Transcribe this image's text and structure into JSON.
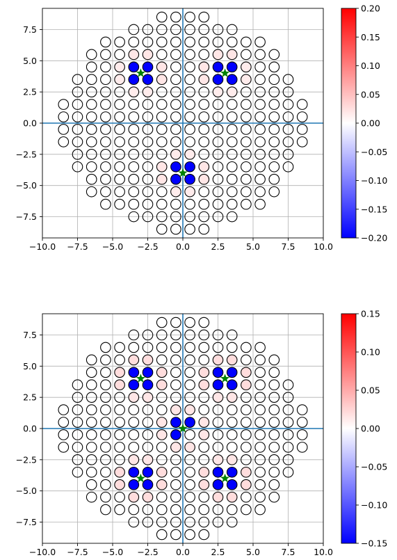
{
  "colors": {
    "axis_line": "#1f77b4",
    "grid": "#b0b0b0",
    "marker_star": "#008000",
    "circle_edge": "#000000",
    "cmap_low": "#0000ff",
    "cmap_mid": "#ffffff",
    "cmap_high": "#ff0000"
  },
  "chart_data": [
    {
      "type": "scatter",
      "title": "",
      "xlabel": "",
      "ylabel": "",
      "xlim": [
        -10,
        10
      ],
      "ylim": [
        -9.2,
        9.2
      ],
      "x_ticks": [
        -10.0,
        -7.5,
        -5.0,
        -2.5,
        0.0,
        2.5,
        5.0,
        7.5,
        10.0
      ],
      "x_tick_labels": [
        "−10.0",
        "−7.5",
        "−5.0",
        "−2.5",
        "0.0",
        "2.5",
        "5.0",
        "7.5",
        "10.0"
      ],
      "y_ticks": [
        -7.5,
        -5.0,
        -2.5,
        0.0,
        2.5,
        5.0,
        7.5
      ],
      "y_tick_labels": [
        "−7.5",
        "−5.0",
        "−2.5",
        "0.0",
        "2.5",
        "5.0",
        "7.5"
      ],
      "grid": true,
      "colorbar": {
        "range": [
          -0.2,
          0.2
        ],
        "ticks": [
          -0.2,
          -0.15,
          -0.1,
          -0.05,
          0.0,
          0.05,
          0.1,
          0.15,
          0.2
        ],
        "tick_labels": [
          "−0.20",
          "−0.15",
          "−0.10",
          "−0.05",
          "0.00",
          "0.05",
          "0.10",
          "0.15",
          "0.20"
        ]
      },
      "lattice": {
        "spacing": 1.0,
        "rows": [
          {
            "y": 8.5,
            "x_min": -1.5,
            "x_max": 1.5
          },
          {
            "y": 7.5,
            "x_min": -3.5,
            "x_max": 3.5
          },
          {
            "y": 6.5,
            "x_min": -5.5,
            "x_max": 5.5
          },
          {
            "y": 5.5,
            "x_min": -6.5,
            "x_max": 6.5
          },
          {
            "y": 4.5,
            "x_min": -6.5,
            "x_max": 6.5
          },
          {
            "y": 3.5,
            "x_min": -7.5,
            "x_max": 7.5
          },
          {
            "y": 2.5,
            "x_min": -7.5,
            "x_max": 7.5
          },
          {
            "y": 1.5,
            "x_min": -8.5,
            "x_max": 8.5
          },
          {
            "y": 0.5,
            "x_min": -8.5,
            "x_max": 8.5
          },
          {
            "y": -0.5,
            "x_min": -8.5,
            "x_max": 8.5
          },
          {
            "y": -1.5,
            "x_min": -8.5,
            "x_max": 8.5
          },
          {
            "y": -2.5,
            "x_min": -7.5,
            "x_max": 7.5
          },
          {
            "y": -3.5,
            "x_min": -7.5,
            "x_max": 7.5
          },
          {
            "y": -4.5,
            "x_min": -6.5,
            "x_max": 6.5
          },
          {
            "y": -5.5,
            "x_min": -6.5,
            "x_max": 6.5
          },
          {
            "y": -6.5,
            "x_min": -5.5,
            "x_max": 5.5
          },
          {
            "y": -7.5,
            "x_min": -3.5,
            "x_max": 3.5
          },
          {
            "y": -8.5,
            "x_min": -1.5,
            "x_max": 1.5
          }
        ]
      },
      "highlighted_sites": [
        {
          "x": -3.5,
          "y": 4.5,
          "value": -0.2
        },
        {
          "x": -2.5,
          "y": 4.5,
          "value": -0.2
        },
        {
          "x": -3.5,
          "y": 3.5,
          "value": -0.2
        },
        {
          "x": -2.5,
          "y": 3.5,
          "value": -0.2
        },
        {
          "x": 2.5,
          "y": 4.5,
          "value": -0.2
        },
        {
          "x": 3.5,
          "y": 4.5,
          "value": -0.2
        },
        {
          "x": 2.5,
          "y": 3.5,
          "value": -0.2
        },
        {
          "x": 3.5,
          "y": 3.5,
          "value": -0.2
        },
        {
          "x": -0.5,
          "y": -3.5,
          "value": -0.2
        },
        {
          "x": 0.5,
          "y": -3.5,
          "value": -0.2
        },
        {
          "x": -0.5,
          "y": -4.5,
          "value": -0.2
        },
        {
          "x": 0.5,
          "y": -4.5,
          "value": -0.2
        },
        {
          "x": -3.5,
          "y": 5.5,
          "value": 0.02
        },
        {
          "x": -2.5,
          "y": 5.5,
          "value": 0.02
        },
        {
          "x": 2.5,
          "y": 5.5,
          "value": 0.02
        },
        {
          "x": 3.5,
          "y": 5.5,
          "value": 0.02
        },
        {
          "x": -1.5,
          "y": 4.5,
          "value": 0.02
        },
        {
          "x": 1.5,
          "y": 4.5,
          "value": 0.02
        },
        {
          "x": -1.5,
          "y": 3.5,
          "value": 0.02
        },
        {
          "x": 1.5,
          "y": 3.5,
          "value": 0.02
        },
        {
          "x": -3.5,
          "y": 2.5,
          "value": 0.015
        },
        {
          "x": -2.5,
          "y": 2.5,
          "value": 0.015
        },
        {
          "x": 2.5,
          "y": 2.5,
          "value": 0.015
        },
        {
          "x": 3.5,
          "y": 2.5,
          "value": 0.015
        },
        {
          "x": -4.5,
          "y": 4.5,
          "value": 0.015
        },
        {
          "x": -4.5,
          "y": 3.5,
          "value": 0.015
        },
        {
          "x": 4.5,
          "y": 4.5,
          "value": 0.015
        },
        {
          "x": 4.5,
          "y": 3.5,
          "value": 0.015
        },
        {
          "x": -1.5,
          "y": -3.5,
          "value": 0.02
        },
        {
          "x": 1.5,
          "y": -3.5,
          "value": 0.02
        },
        {
          "x": -1.5,
          "y": -4.5,
          "value": 0.02
        },
        {
          "x": 1.5,
          "y": -4.5,
          "value": 0.02
        },
        {
          "x": -0.5,
          "y": -2.5,
          "value": 0.015
        },
        {
          "x": 0.5,
          "y": -2.5,
          "value": 0.015
        },
        {
          "x": -0.5,
          "y": -5.5,
          "value": 0.015
        },
        {
          "x": 0.5,
          "y": -5.5,
          "value": 0.015
        }
      ],
      "stars": [
        {
          "x": -3.0,
          "y": 4.0
        },
        {
          "x": 3.0,
          "y": 4.0
        },
        {
          "x": 0.0,
          "y": -4.0
        }
      ]
    },
    {
      "type": "scatter",
      "title": "",
      "xlabel": "",
      "ylabel": "",
      "xlim": [
        -10,
        10
      ],
      "ylim": [
        -9.2,
        9.2
      ],
      "x_ticks": [
        -10.0,
        -7.5,
        -5.0,
        -2.5,
        0.0,
        2.5,
        5.0,
        7.5,
        10.0
      ],
      "x_tick_labels": [
        "−10.0",
        "−7.5",
        "−5.0",
        "−2.5",
        "0.0",
        "2.5",
        "5.0",
        "7.5",
        "10.0"
      ],
      "y_ticks": [
        -7.5,
        -5.0,
        -2.5,
        0.0,
        2.5,
        5.0,
        7.5
      ],
      "y_tick_labels": [
        "−7.5",
        "−5.0",
        "−2.5",
        "0.0",
        "2.5",
        "5.0",
        "7.5"
      ],
      "grid": true,
      "colorbar": {
        "range": [
          -0.15,
          0.15
        ],
        "ticks": [
          -0.15,
          -0.1,
          -0.05,
          0.0,
          0.05,
          0.1,
          0.15
        ],
        "tick_labels": [
          "−0.15",
          "−0.10",
          "−0.05",
          "0.00",
          "0.05",
          "0.10",
          "0.15"
        ]
      },
      "lattice": {
        "spacing": 1.0,
        "rows": [
          {
            "y": 8.5,
            "x_min": -1.5,
            "x_max": 1.5
          },
          {
            "y": 7.5,
            "x_min": -3.5,
            "x_max": 3.5
          },
          {
            "y": 6.5,
            "x_min": -5.5,
            "x_max": 5.5
          },
          {
            "y": 5.5,
            "x_min": -6.5,
            "x_max": 6.5
          },
          {
            "y": 4.5,
            "x_min": -6.5,
            "x_max": 6.5
          },
          {
            "y": 3.5,
            "x_min": -7.5,
            "x_max": 7.5
          },
          {
            "y": 2.5,
            "x_min": -7.5,
            "x_max": 7.5
          },
          {
            "y": 1.5,
            "x_min": -8.5,
            "x_max": 8.5
          },
          {
            "y": 0.5,
            "x_min": -8.5,
            "x_max": 8.5
          },
          {
            "y": -0.5,
            "x_min": -8.5,
            "x_max": 8.5
          },
          {
            "y": -1.5,
            "x_min": -8.5,
            "x_max": 8.5
          },
          {
            "y": -2.5,
            "x_min": -7.5,
            "x_max": 7.5
          },
          {
            "y": -3.5,
            "x_min": -7.5,
            "x_max": 7.5
          },
          {
            "y": -4.5,
            "x_min": -6.5,
            "x_max": 6.5
          },
          {
            "y": -5.5,
            "x_min": -6.5,
            "x_max": 6.5
          },
          {
            "y": -6.5,
            "x_min": -5.5,
            "x_max": 5.5
          },
          {
            "y": -7.5,
            "x_min": -3.5,
            "x_max": 3.5
          },
          {
            "y": -8.5,
            "x_min": -1.5,
            "x_max": 1.5
          }
        ]
      },
      "highlighted_sites": [
        {
          "x": -3.5,
          "y": 4.5,
          "value": -0.15
        },
        {
          "x": -2.5,
          "y": 4.5,
          "value": -0.15
        },
        {
          "x": -3.5,
          "y": 3.5,
          "value": -0.15
        },
        {
          "x": -2.5,
          "y": 3.5,
          "value": -0.15
        },
        {
          "x": 2.5,
          "y": 4.5,
          "value": -0.15
        },
        {
          "x": 3.5,
          "y": 4.5,
          "value": -0.15
        },
        {
          "x": 2.5,
          "y": 3.5,
          "value": -0.15
        },
        {
          "x": 3.5,
          "y": 3.5,
          "value": -0.15
        },
        {
          "x": -3.5,
          "y": -3.5,
          "value": -0.15
        },
        {
          "x": -2.5,
          "y": -3.5,
          "value": -0.15
        },
        {
          "x": -3.5,
          "y": -4.5,
          "value": -0.15
        },
        {
          "x": -2.5,
          "y": -4.5,
          "value": -0.15
        },
        {
          "x": 2.5,
          "y": -3.5,
          "value": -0.15
        },
        {
          "x": 3.5,
          "y": -3.5,
          "value": -0.15
        },
        {
          "x": 2.5,
          "y": -4.5,
          "value": -0.15
        },
        {
          "x": 3.5,
          "y": -4.5,
          "value": -0.15
        },
        {
          "x": -0.5,
          "y": 0.5,
          "value": -0.15
        },
        {
          "x": 0.5,
          "y": 0.5,
          "value": -0.15
        },
        {
          "x": -0.5,
          "y": -0.5,
          "value": -0.15
        },
        {
          "x": -3.5,
          "y": 5.5,
          "value": 0.02
        },
        {
          "x": -2.5,
          "y": 5.5,
          "value": 0.02
        },
        {
          "x": 2.5,
          "y": 5.5,
          "value": 0.02
        },
        {
          "x": 3.5,
          "y": 5.5,
          "value": 0.02
        },
        {
          "x": -4.5,
          "y": 4.5,
          "value": 0.02
        },
        {
          "x": -1.5,
          "y": 4.5,
          "value": 0.02
        },
        {
          "x": 1.5,
          "y": 4.5,
          "value": 0.02
        },
        {
          "x": 4.5,
          "y": 4.5,
          "value": 0.02
        },
        {
          "x": -4.5,
          "y": 3.5,
          "value": 0.02
        },
        {
          "x": -1.5,
          "y": 3.5,
          "value": 0.02
        },
        {
          "x": 1.5,
          "y": 3.5,
          "value": 0.02
        },
        {
          "x": 4.5,
          "y": 3.5,
          "value": 0.02
        },
        {
          "x": -3.5,
          "y": 2.5,
          "value": 0.015
        },
        {
          "x": -2.5,
          "y": 2.5,
          "value": 0.015
        },
        {
          "x": 2.5,
          "y": 2.5,
          "value": 0.015
        },
        {
          "x": 3.5,
          "y": 2.5,
          "value": 0.015
        },
        {
          "x": -0.5,
          "y": 1.5,
          "value": 0.015
        },
        {
          "x": 0.5,
          "y": 1.5,
          "value": 0.015
        },
        {
          "x": -1.5,
          "y": 0.5,
          "value": 0.015
        },
        {
          "x": 1.5,
          "y": 0.5,
          "value": 0.015
        },
        {
          "x": -1.5,
          "y": -0.5,
          "value": 0.015
        },
        {
          "x": 1.5,
          "y": -0.5,
          "value": 0.015
        },
        {
          "x": -0.5,
          "y": -1.5,
          "value": 0.015
        },
        {
          "x": 0.5,
          "y": -1.5,
          "value": 0.015
        },
        {
          "x": -3.5,
          "y": -2.5,
          "value": 0.015
        },
        {
          "x": -2.5,
          "y": -2.5,
          "value": 0.015
        },
        {
          "x": 2.5,
          "y": -2.5,
          "value": 0.015
        },
        {
          "x": 3.5,
          "y": -2.5,
          "value": 0.015
        },
        {
          "x": -4.5,
          "y": -3.5,
          "value": 0.02
        },
        {
          "x": -1.5,
          "y": -3.5,
          "value": 0.02
        },
        {
          "x": 1.5,
          "y": -3.5,
          "value": 0.02
        },
        {
          "x": 4.5,
          "y": -3.5,
          "value": 0.02
        },
        {
          "x": -4.5,
          "y": -4.5,
          "value": 0.02
        },
        {
          "x": -1.5,
          "y": -4.5,
          "value": 0.02
        },
        {
          "x": 1.5,
          "y": -4.5,
          "value": 0.02
        },
        {
          "x": 4.5,
          "y": -4.5,
          "value": 0.02
        },
        {
          "x": -3.5,
          "y": -5.5,
          "value": 0.02
        },
        {
          "x": -2.5,
          "y": -5.5,
          "value": 0.02
        },
        {
          "x": 2.5,
          "y": -5.5,
          "value": 0.02
        },
        {
          "x": 3.5,
          "y": -5.5,
          "value": 0.02
        }
      ],
      "stars": [
        {
          "x": -3.0,
          "y": 4.0
        },
        {
          "x": 3.0,
          "y": 4.0
        },
        {
          "x": -3.0,
          "y": -4.0
        },
        {
          "x": 3.0,
          "y": -4.0
        },
        {
          "x": 0.0,
          "y": 0.0
        }
      ]
    }
  ]
}
